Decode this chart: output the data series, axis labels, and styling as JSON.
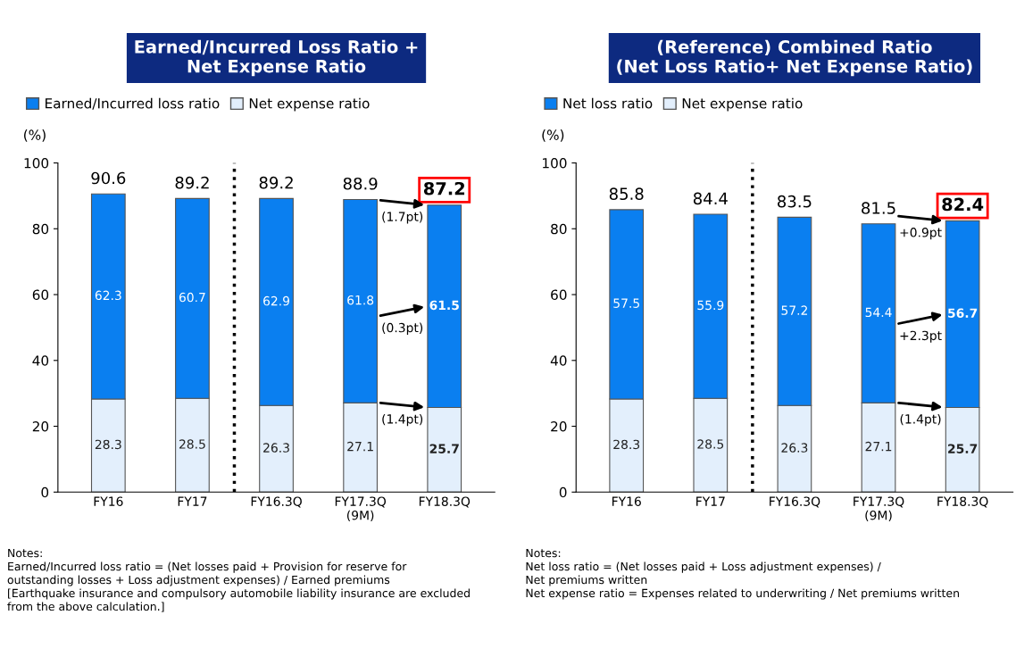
{
  "chart_data": [
    {
      "type": "bar",
      "title": "Earned/Incurred Loss Ratio +\nNet Expense Ratio",
      "ylabel": "(%)",
      "stacked": true,
      "data_labels": true,
      "legend": "top left",
      "categories": [
        "FY16",
        "FY17",
        "FY16.3Q",
        "FY17.3Q\n(9M)",
        "FY18.3Q"
      ],
      "series": [
        {
          "name": "Net expense ratio",
          "color": "#e3effc",
          "values": [
            28.3,
            28.5,
            26.3,
            27.1,
            25.7
          ]
        },
        {
          "name": "Earned/Incurred loss ratio",
          "color": "#0a7ff0",
          "values": [
            62.3,
            60.7,
            62.9,
            61.8,
            61.5
          ]
        }
      ],
      "totals": [
        "90.6",
        "89.2",
        "89.2",
        "88.9",
        "87.2"
      ],
      "ylim": [
        0,
        100
      ],
      "yticks": [
        0,
        20,
        40,
        60,
        80,
        100
      ],
      "annotations": [
        {
          "text": "(1.7pt)",
          "x": "FY18.3Q",
          "y": 87.2
        },
        "(0.3pt)",
        {
          "text": "(1.4pt)",
          "x": "FY18.3Q",
          "y": 25.7
        },
        "Notes:\nEarned/Incurred loss ratio = (Net losses paid + Provision for reserve for\noutstanding losses + Loss adjustment expenses) / Earned premiums\n[Earthquake insurance and compulsory automobile liability insurance are excluded\nfrom the above calculation.]"
      ]
    },
    {
      "type": "bar",
      "title": "(Reference) Combined Ratio",
      "subtitle": "(Net Loss Ratio+ Net Expense Ratio)",
      "ylabel": "(%)",
      "stacked": true,
      "data_labels": true,
      "legend": "top left",
      "categories": [
        "FY16",
        "FY17",
        "FY16.3Q",
        "FY17.3Q\n(9M)",
        "FY18.3Q"
      ],
      "series": [
        {
          "name": "Net expense ratio",
          "color": "#e3effc",
          "values": [
            28.3,
            28.5,
            26.3,
            27.1,
            25.7
          ]
        },
        {
          "name": "Net loss ratio",
          "color": "#0a7ff0",
          "values": [
            57.5,
            55.9,
            57.2,
            54.4,
            56.7
          ]
        }
      ],
      "totals": [
        "85.8",
        "84.4",
        "83.5",
        "81.5",
        "82.4"
      ],
      "ylim": [
        0,
        100
      ],
      "yticks": [
        0,
        20,
        40,
        60,
        80,
        100
      ],
      "annotations": [
        {
          "text": "+0.9pt",
          "x": "FY18.3Q",
          "y": 82.4
        },
        "+2.3pt",
        {
          "text": "(1.4pt)",
          "x": "FY18.3Q",
          "y": 25.7
        },
        "Notes:\nNet loss ratio = (Net losses paid + Loss adjustment expenses) /\nNet premiums written\nNet expense ratio = Expenses related to underwriting / Net premiums written"
      ]
    }
  ]
}
